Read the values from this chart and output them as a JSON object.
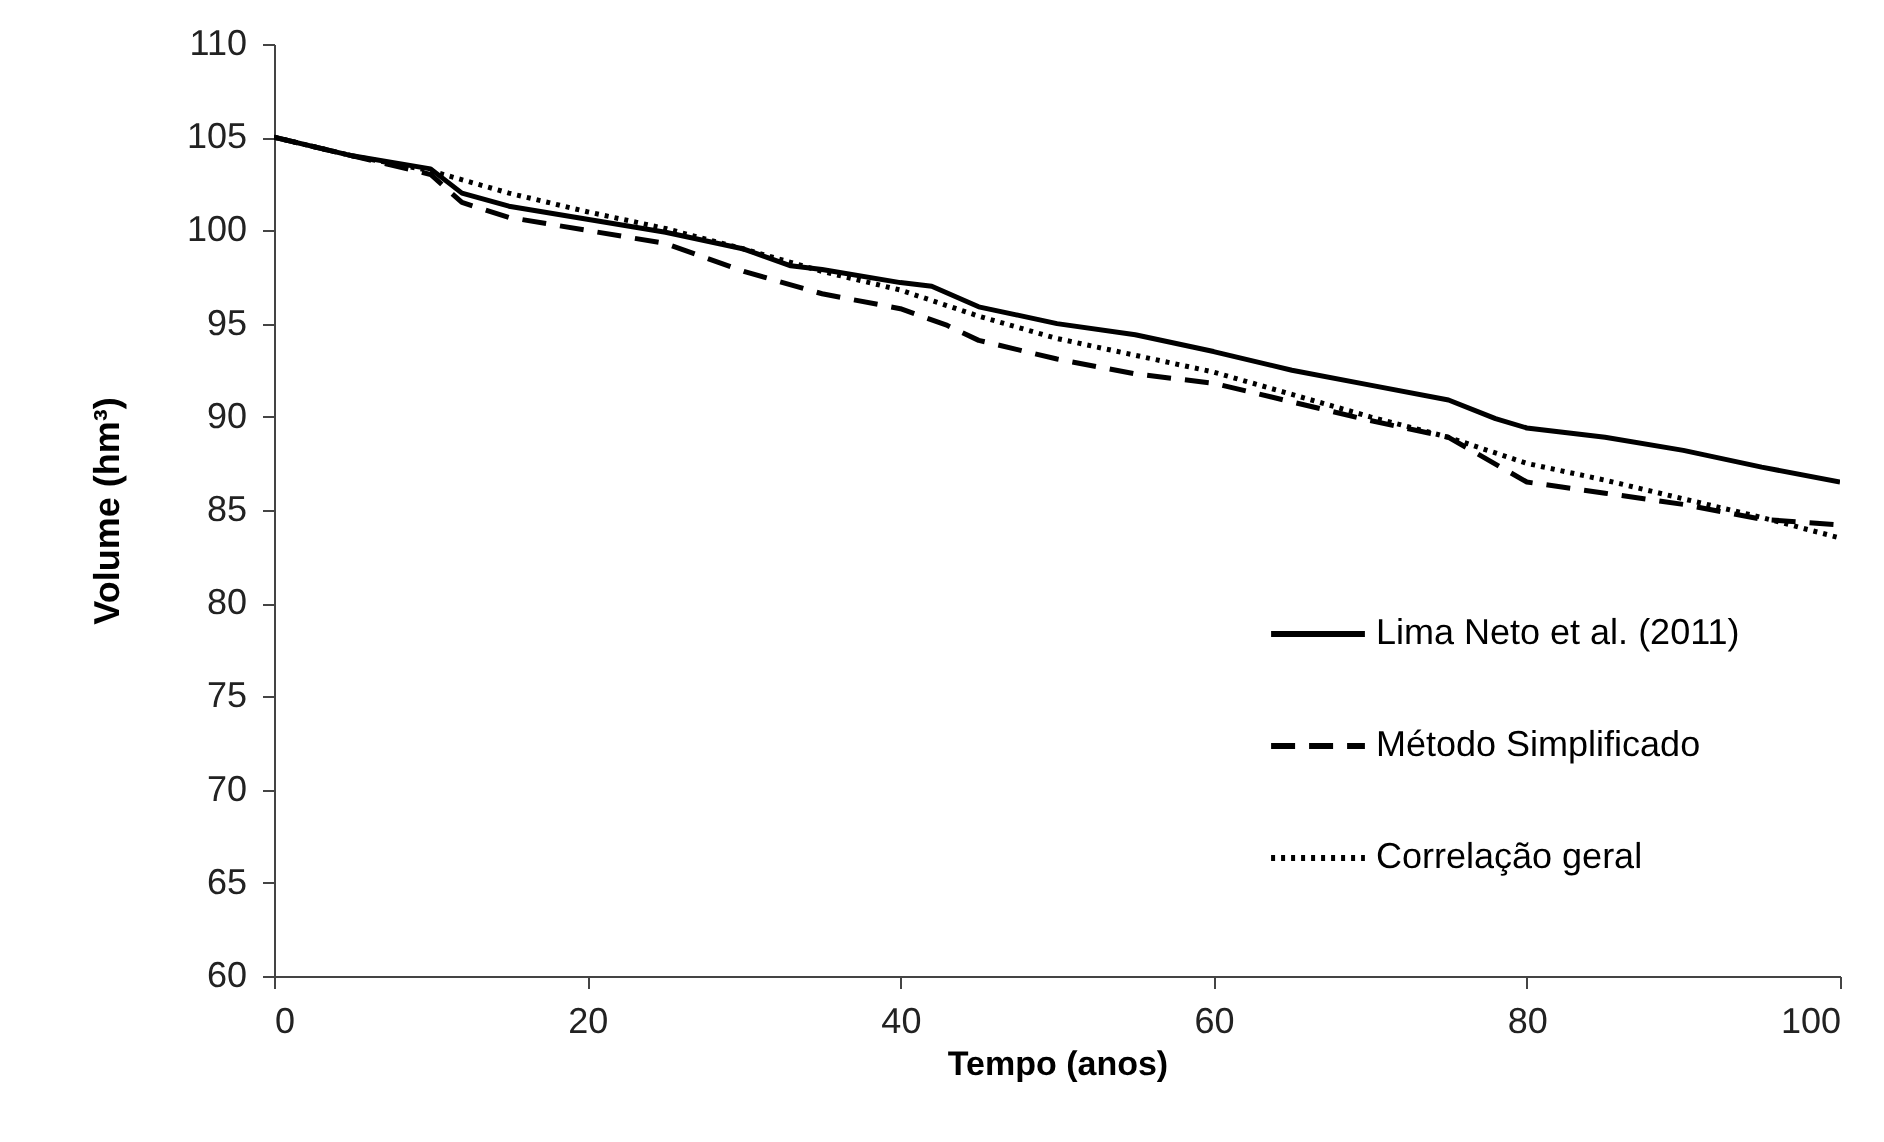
{
  "chart_data": {
    "type": "line",
    "xlabel": "Tempo (anos)",
    "ylabel": "Volume (hm³)",
    "xlim": [
      0,
      100
    ],
    "xticks": [
      0,
      20,
      40,
      60,
      80,
      100
    ],
    "ylim": [
      60,
      110
    ],
    "yticks": [
      60,
      65,
      70,
      75,
      80,
      85,
      90,
      95,
      100,
      105,
      110
    ],
    "grid": false,
    "legend": "bottom right",
    "marker": "none",
    "series": [
      {
        "name": "Lima Neto et al. (2011)",
        "color": "#000000",
        "line_style": "solid",
        "x": [
          0,
          5,
          10,
          12,
          15,
          20,
          25,
          30,
          33,
          35,
          40,
          42,
          45,
          50,
          55,
          60,
          65,
          70,
          75,
          78,
          80,
          85,
          90,
          95,
          100
        ],
        "values": [
          105,
          104,
          103.3,
          102,
          101.3,
          100.6,
          99.9,
          99,
          98.1,
          97.9,
          97.2,
          97,
          95.9,
          95,
          94.4,
          93.5,
          92.5,
          91.7,
          90.9,
          89.9,
          89.4,
          88.9,
          88.2,
          87.3,
          86.5
        ]
      },
      {
        "name": "Método Simplificado",
        "color": "#000000",
        "line_style": "dashed",
        "x": [
          0,
          5,
          10,
          12,
          15,
          20,
          25,
          30,
          35,
          40,
          43,
          45,
          50,
          55,
          60,
          65,
          70,
          75,
          80,
          85,
          90,
          95,
          100
        ],
        "values": [
          105,
          104,
          103,
          101.5,
          100.7,
          100,
          99.3,
          97.8,
          96.6,
          95.8,
          94.9,
          94.1,
          93.1,
          92.3,
          91.8,
          90.8,
          89.8,
          88.9,
          86.5,
          85.9,
          85.3,
          84.5,
          84.2
        ]
      },
      {
        "name": "Correlação geral",
        "color": "#000000",
        "line_style": "dotted",
        "x": [
          0,
          5,
          10,
          15,
          20,
          25,
          30,
          35,
          40,
          45,
          50,
          55,
          60,
          65,
          70,
          75,
          80,
          85,
          90,
          95,
          100
        ],
        "values": [
          105,
          104,
          103.2,
          102,
          101,
          100.1,
          99,
          97.8,
          96.8,
          95.4,
          94.2,
          93.3,
          92.4,
          91.2,
          90,
          88.9,
          87.5,
          86.6,
          85.6,
          84.6,
          83.5
        ]
      }
    ]
  }
}
